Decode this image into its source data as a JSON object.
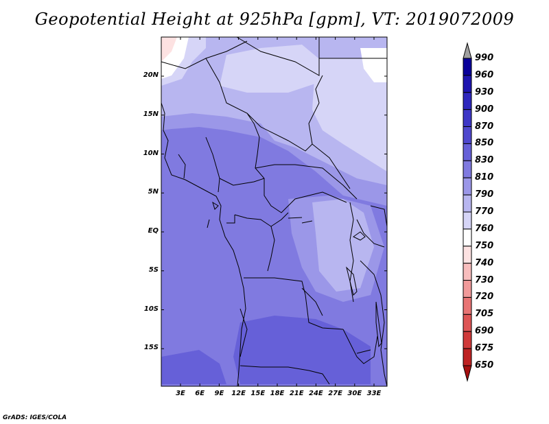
{
  "title": "Geopotential Height at 925hPa [gpm], VT: 2019072009",
  "footer": "GrADS: IGES/COLA",
  "axes": {
    "lat_labels": [
      "20N",
      "15N",
      "10N",
      "5N",
      "EQ",
      "5S",
      "10S",
      "15S"
    ],
    "lat_values": [
      20,
      15,
      10,
      5,
      0,
      -5,
      -10,
      -15
    ],
    "lon_labels": [
      "3E",
      "6E",
      "9E",
      "12E",
      "15E",
      "18E",
      "21E",
      "24E",
      "27E",
      "30E",
      "33E"
    ],
    "lon_values": [
      3,
      6,
      9,
      12,
      15,
      18,
      21,
      24,
      27,
      30,
      33
    ]
  },
  "colorbar": {
    "labels": [
      "990",
      "960",
      "930",
      "900",
      "870",
      "850",
      "830",
      "810",
      "790",
      "770",
      "760",
      "750",
      "740",
      "730",
      "720",
      "705",
      "690",
      "675",
      "650"
    ],
    "colors": [
      "#09009a",
      "#1e15b0",
      "#2e27bd",
      "#3d36c6",
      "#4f48ce",
      "#6660d8",
      "#807ae0",
      "#9b97e8",
      "#b8b6f0",
      "#d6d5f7",
      "#ffffff",
      "#fde2e2",
      "#f8bdbd",
      "#f19a9a",
      "#e87474",
      "#de5555",
      "#d03a3a",
      "#be2222",
      "#a51010"
    ],
    "top_arrow_color": "#a0a0a0",
    "bottom_arrow_color": "#a51010"
  },
  "map_colors": {
    "level_770_790": "#d6d5f7",
    "level_790_810": "#b8b6f0",
    "level_810_830": "#9b97e8",
    "level_830_850": "#807ae0",
    "level_850_870": "#6660d8",
    "level_760_770": "#ffffff",
    "level_750_760": "#fde2e2"
  }
}
